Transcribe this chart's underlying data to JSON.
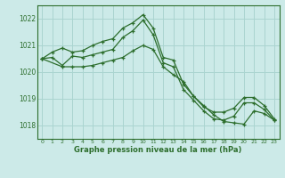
{
  "title": "Graphe pression niveau de la mer (hPa)",
  "background_color": "#cceae8",
  "grid_color": "#aad4d0",
  "line_color": "#2d6e2d",
  "xlim": [
    -0.5,
    23.5
  ],
  "ylim": [
    1017.5,
    1022.5
  ],
  "yticks": [
    1018,
    1019,
    1020,
    1021,
    1022
  ],
  "xticks": [
    0,
    1,
    2,
    3,
    4,
    5,
    6,
    7,
    8,
    9,
    10,
    11,
    12,
    13,
    14,
    15,
    16,
    17,
    18,
    19,
    20,
    21,
    22,
    23
  ],
  "line1_x": [
    0,
    1,
    2,
    3,
    4,
    5,
    6,
    7,
    8,
    9,
    10,
    11,
    12,
    13,
    14,
    15,
    16,
    17,
    18,
    19,
    20,
    21,
    22,
    23
  ],
  "line1_y": [
    1020.5,
    1020.75,
    1020.9,
    1020.75,
    1020.8,
    1021.0,
    1021.15,
    1021.25,
    1021.65,
    1021.85,
    1022.15,
    1021.65,
    1020.55,
    1020.45,
    1019.55,
    1019.1,
    1018.7,
    1018.5,
    1018.5,
    1018.65,
    1019.05,
    1019.05,
    1018.75,
    1018.25
  ],
  "line2_x": [
    0,
    1,
    2,
    3,
    4,
    5,
    6,
    7,
    8,
    9,
    10,
    11,
    12,
    13,
    14,
    15,
    16,
    17,
    18,
    19,
    20,
    21,
    22,
    23
  ],
  "line2_y": [
    1020.5,
    1020.55,
    1020.25,
    1020.6,
    1020.55,
    1020.65,
    1020.75,
    1020.85,
    1021.3,
    1021.55,
    1021.95,
    1021.4,
    1020.35,
    1020.2,
    1019.35,
    1018.95,
    1018.55,
    1018.25,
    1018.2,
    1018.35,
    1018.85,
    1018.85,
    1018.6,
    1018.2
  ],
  "line3_x": [
    0,
    2,
    3,
    4,
    5,
    6,
    7,
    8,
    9,
    10,
    11,
    12,
    13,
    14,
    15,
    16,
    17,
    18,
    19,
    20,
    21,
    22,
    23
  ],
  "line3_y": [
    1020.5,
    1020.2,
    1020.2,
    1020.2,
    1020.25,
    1020.35,
    1020.45,
    1020.55,
    1020.8,
    1021.0,
    1020.85,
    1020.2,
    1019.9,
    1019.65,
    1019.1,
    1018.75,
    1018.4,
    1018.15,
    1018.1,
    1018.05,
    1018.55,
    1018.45,
    1018.2
  ]
}
